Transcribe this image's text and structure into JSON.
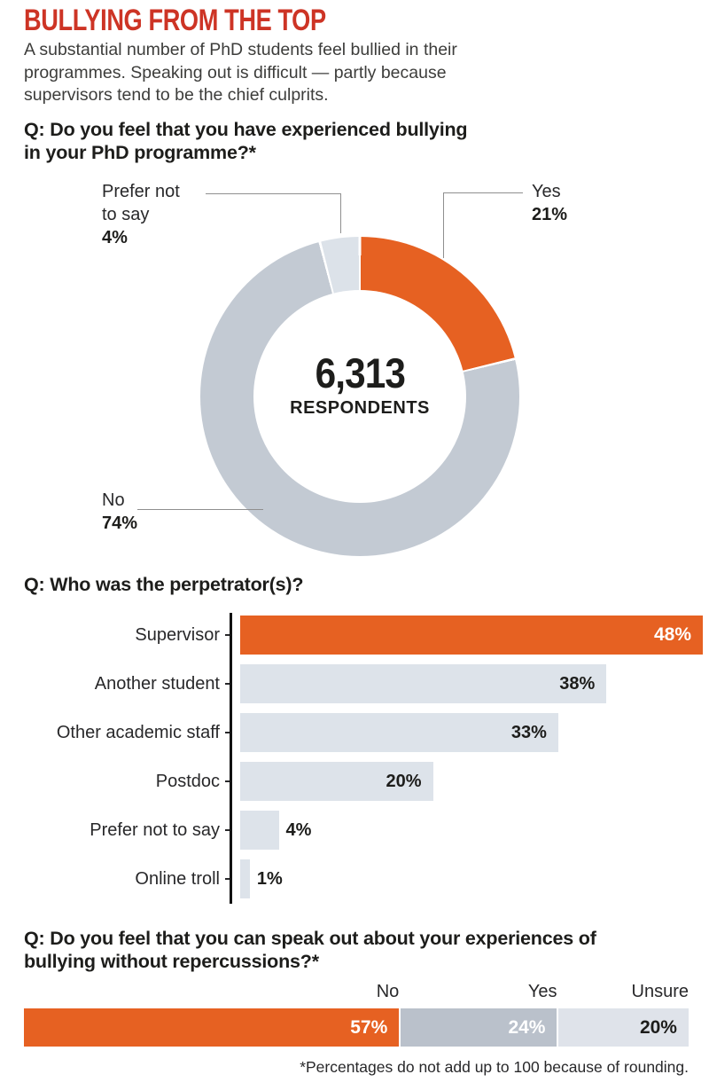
{
  "meta": {
    "title": "BULLYING FROM THE TOP",
    "subtitle": "A substantial number of PhD students feel bullied in their\nprogrammes. Speaking out is difficult — partly because\nsupervisors tend to be the chief culprits.",
    "footnote": "*Percentages do not add up to 100 because of rounding."
  },
  "colors": {
    "accent": "#cd3425",
    "orange": "#e66122",
    "donut_no": "#c3cad3",
    "donut_pnts": "#dce2e9",
    "bar_fill": "#dde3ea",
    "stacked_yes": "#bac1cb",
    "stacked_unsure": "#dfe3ea",
    "axis": "#121212",
    "heading": "#1d1d1b",
    "body": "#3d3d3b",
    "label": "#28282a",
    "leader": "#8f8f8f"
  },
  "q1": {
    "question": "Q: Do you feel that you have experienced bullying\nin your PhD programme?*",
    "center_value": "6,313",
    "center_label": "RESPONDENTS",
    "segments": [
      {
        "label": "Yes",
        "pct": 21,
        "color": "#e66122"
      },
      {
        "label": "No",
        "pct": 74,
        "color": "#c3cad3"
      },
      {
        "label": "Prefer not to say",
        "pct": 4,
        "color": "#dce2e9"
      }
    ],
    "callouts": {
      "pnts_lines": "Prefer not\nto say",
      "pnts_value": "4%",
      "yes_line": "Yes",
      "yes_value": "21%",
      "no_line": "No",
      "no_value": "74%"
    }
  },
  "q2": {
    "question": "Q: Who was the perpetrator(s)?",
    "bars": [
      {
        "label": "Supervisor",
        "value": 48,
        "value_label": "48%",
        "highlight": true
      },
      {
        "label": "Another student",
        "value": 38,
        "value_label": "38%",
        "highlight": false
      },
      {
        "label": "Other academic staff",
        "value": 33,
        "value_label": "33%",
        "highlight": false
      },
      {
        "label": "Postdoc",
        "value": 20,
        "value_label": "20%",
        "highlight": false
      },
      {
        "label": "Prefer not to say",
        "value": 4,
        "value_label": "4%",
        "highlight": false
      },
      {
        "label": "Online troll",
        "value": 1,
        "value_label": "1%",
        "highlight": false
      }
    ]
  },
  "q3": {
    "question": "Q: Do you feel that you can speak out about your experiences of\nbullying without repercussions?*",
    "segments": [
      {
        "label": "No",
        "value": 57,
        "value_label": "57%"
      },
      {
        "label": "Yes",
        "value": 24,
        "value_label": "24%"
      },
      {
        "label": "Unsure",
        "value": 20,
        "value_label": "20%"
      }
    ]
  },
  "chart_data": [
    {
      "type": "pie",
      "subtype": "donut",
      "title": "Q: Do you feel that you have experienced bullying in your PhD programme?*",
      "labels": [
        "Yes",
        "No",
        "Prefer not to say"
      ],
      "values": [
        21,
        74,
        4
      ],
      "unit": "%",
      "center_label": "6,313 RESPONDENTS",
      "colors": [
        "#e66122",
        "#c3cad3",
        "#dce2e9"
      ],
      "legend_position": "callouts"
    },
    {
      "type": "bar",
      "orientation": "horizontal",
      "title": "Q: Who was the perpetrator(s)?",
      "categories": [
        "Supervisor",
        "Another student",
        "Other academic staff",
        "Postdoc",
        "Prefer not to say",
        "Online troll"
      ],
      "values": [
        48,
        38,
        33,
        20,
        4,
        1
      ],
      "unit": "%",
      "xlim": [
        0,
        50
      ],
      "grid": false,
      "highlight_category": "Supervisor"
    },
    {
      "type": "bar",
      "subtype": "stacked-horizontal",
      "title": "Q: Do you feel that you can speak out about your experiences of bullying without repercussions?*",
      "categories": [
        "No",
        "Yes",
        "Unsure"
      ],
      "values": [
        57,
        24,
        20
      ],
      "unit": "%",
      "annotation": "*Percentages do not add up to 100 because of rounding."
    }
  ]
}
